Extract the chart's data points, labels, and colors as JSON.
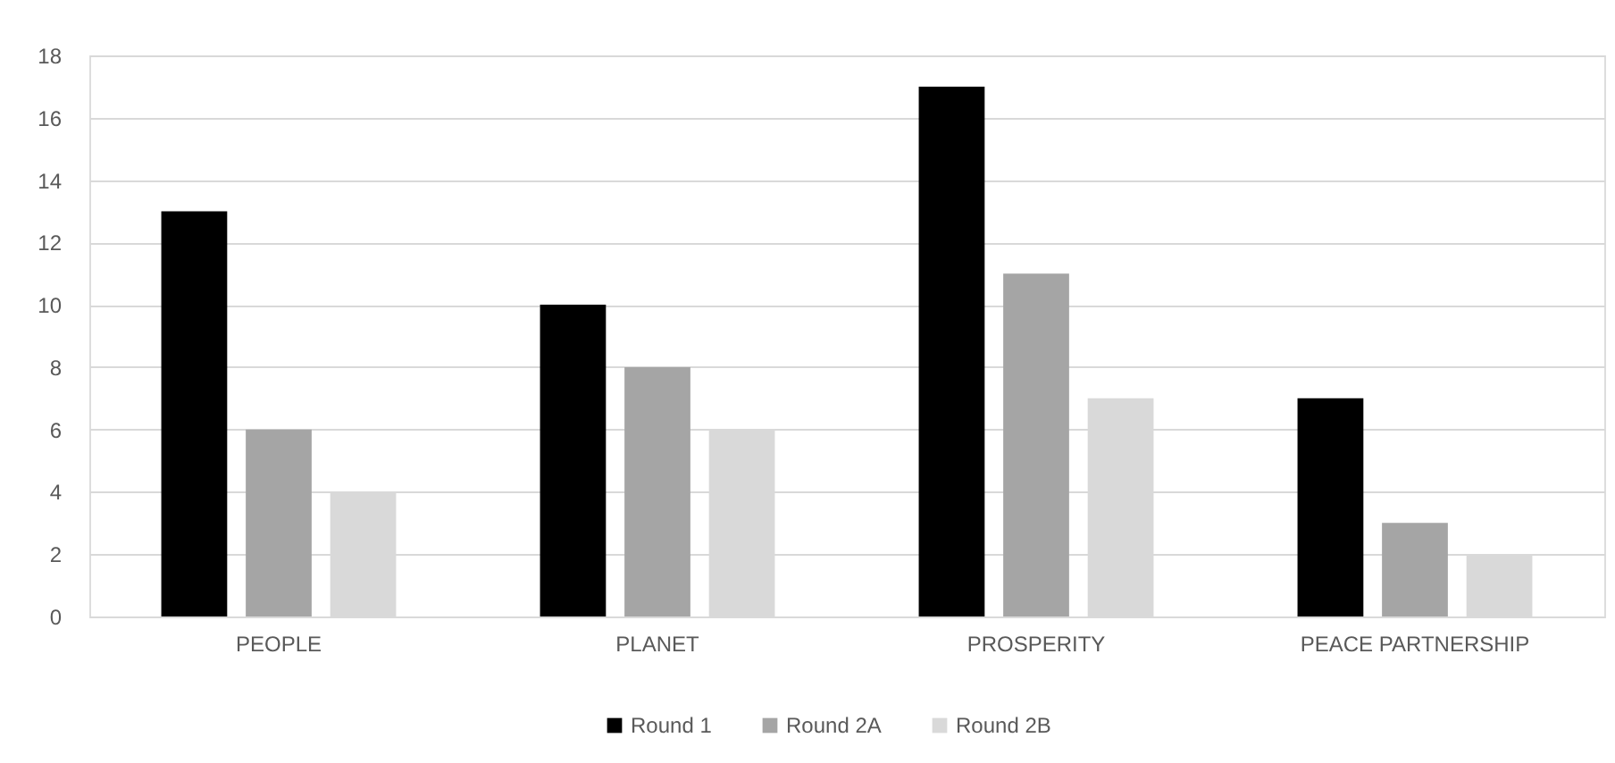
{
  "chart_data": {
    "type": "bar",
    "categories": [
      "PEOPLE",
      "PLANET",
      "PROSPERITY",
      "PEACE PARTNERSHIP"
    ],
    "series": [
      {
        "name": "Round 1",
        "color": "#000000",
        "values": [
          13,
          10,
          17,
          7
        ]
      },
      {
        "name": "Round 2A",
        "color": "#a5a5a5",
        "values": [
          6,
          8,
          11,
          3
        ]
      },
      {
        "name": "Round 2B",
        "color": "#d9d9d9",
        "values": [
          4,
          6,
          7,
          2
        ]
      }
    ],
    "ylim": [
      0,
      18
    ],
    "yticks": [
      0,
      2,
      4,
      6,
      8,
      10,
      12,
      14,
      16,
      18
    ],
    "grid": "y",
    "legend": "bottom"
  }
}
